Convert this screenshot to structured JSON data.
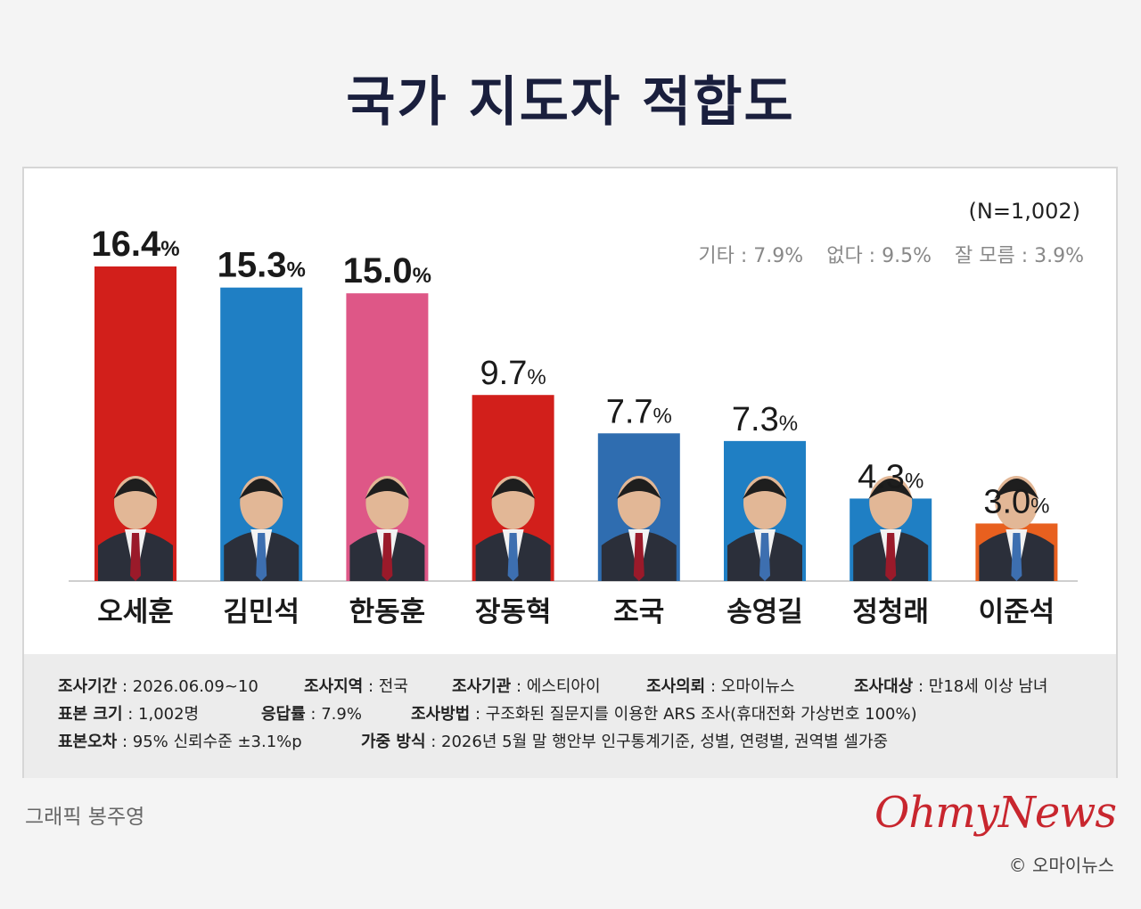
{
  "title": "국가 지도자 적합도",
  "sample": "(N=1,002)",
  "others": [
    {
      "label": "기타 : 7.9%"
    },
    {
      "label": "없다 : 9.5%"
    },
    {
      "label": "잘 모름 : 3.9%"
    }
  ],
  "chart_data": {
    "type": "bar",
    "categories": [
      "오세훈",
      "김민석",
      "한동훈",
      "장동혁",
      "조국",
      "송영길",
      "정청래",
      "이준석"
    ],
    "values": [
      16.4,
      15.3,
      15.0,
      9.7,
      7.7,
      7.3,
      4.3,
      3.0
    ],
    "value_labels": [
      "16.4",
      "15.3",
      "15.0",
      "9.7",
      "7.7",
      "7.3",
      "4.3",
      "3.0"
    ],
    "unit": "%",
    "bar_colors": [
      "#d21f1b",
      "#1f7fc4",
      "#de5787",
      "#d21f1b",
      "#2f6db0",
      "#1f7fc4",
      "#1f7fc4",
      "#e8601f"
    ],
    "ylim": [
      0,
      16.4
    ],
    "title": "국가 지도자 적합도",
    "xlabel": "",
    "ylabel": ""
  },
  "footer": {
    "row1": [
      {
        "key": "조사기간",
        "value": " : 2026.06.09~10"
      },
      {
        "key": "조사지역",
        "value": " : 전국"
      },
      {
        "key": "조사기관",
        "value": " : 에스티아이"
      },
      {
        "key": "조사의뢰",
        "value": " : 오마이뉴스"
      },
      {
        "key": "조사대상",
        "value": " : 만18세 이상 남녀"
      }
    ],
    "row2": [
      {
        "key": "표본 크기",
        "value": " : 1,002명"
      },
      {
        "key": "응답률",
        "value": " : 7.9%"
      },
      {
        "key": "조사방법",
        "value": " : 구조화된 질문지를 이용한 ARS 조사(휴대전화 가상번호 100%)"
      }
    ],
    "row3": [
      {
        "key": "표본오차",
        "value": " : 95% 신뢰수준 ±3.1%p"
      },
      {
        "key": "가중 방식",
        "value": " : 2026년 5월 말 행안부 인구통계기준, 성별, 연령별, 권역별 셀가중"
      }
    ]
  },
  "credit": "그래픽 봉주영",
  "logo": "OhmyNews",
  "copyright": "© 오마이뉴스"
}
